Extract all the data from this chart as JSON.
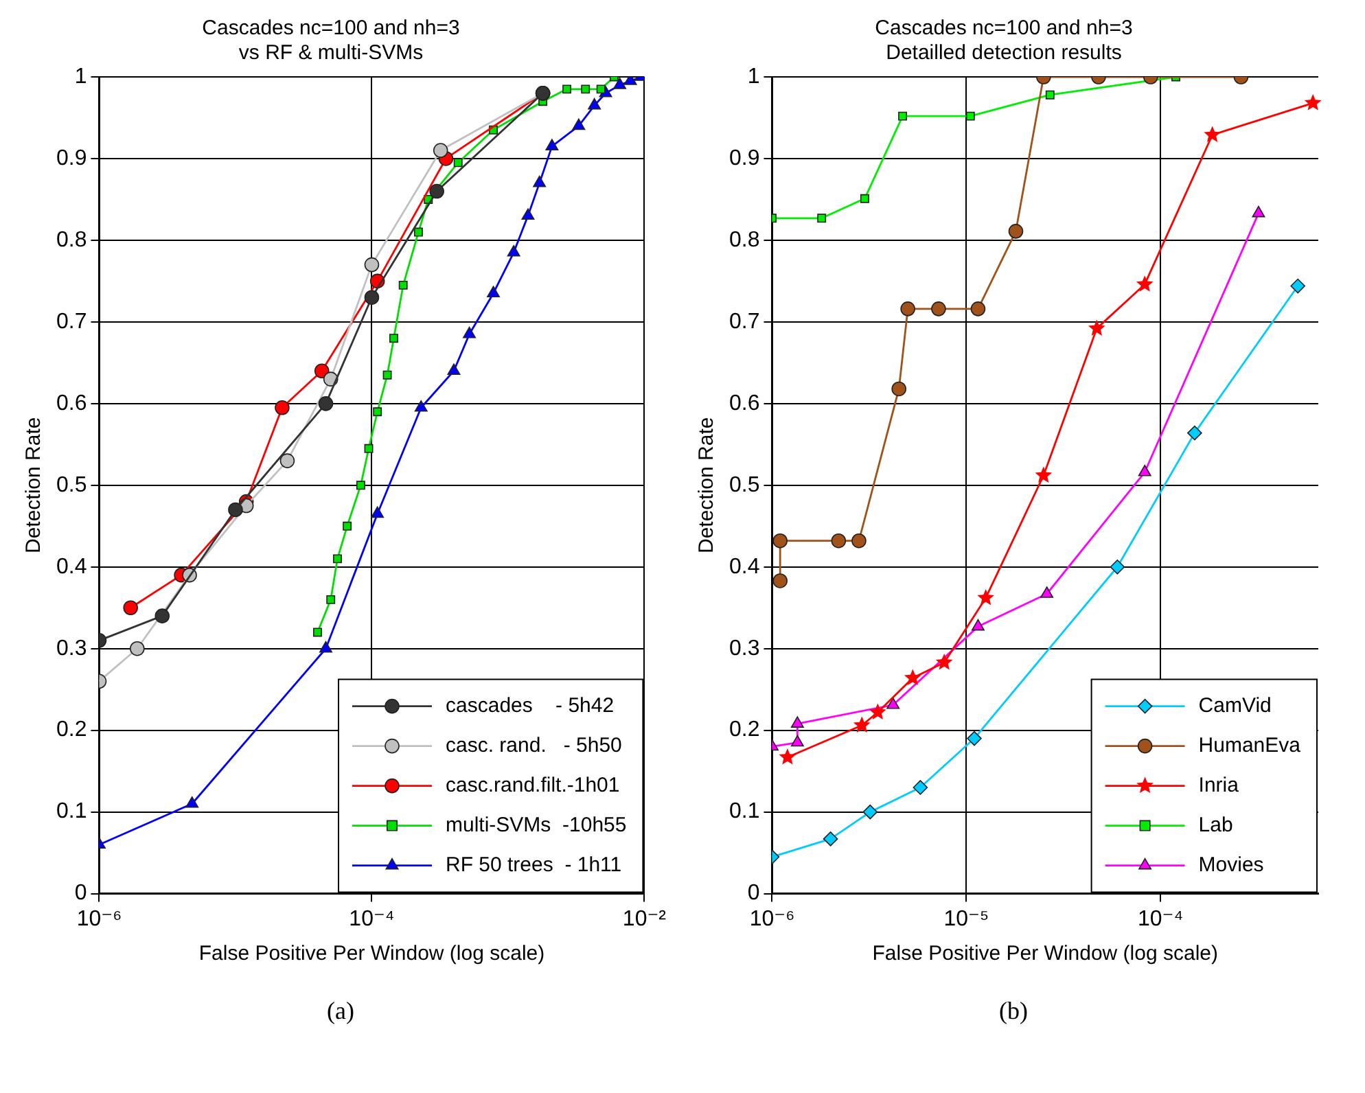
{
  "chart_data": [
    {
      "type": "line",
      "title": "Cascades nc=100 and nh=3",
      "subtitle": "vs RF & multi-SVMs",
      "xlabel": "False Positive Per Window (log scale)",
      "ylabel": "Detection Rate",
      "annotations": [
        "(a)"
      ],
      "log": "x",
      "grid": true,
      "legend": "bottom right",
      "xlim": [
        1e-06,
        0.01
      ],
      "ylim": [
        0,
        1
      ],
      "xticks": [
        {
          "value": 1e-06,
          "label": "10⁻⁶"
        },
        {
          "value": 0.0001,
          "label": "10⁻⁴"
        },
        {
          "value": 0.01,
          "label": "10⁻²"
        }
      ],
      "yticks": [
        0,
        0.1,
        0.2,
        0.3,
        0.4,
        0.5,
        0.6,
        0.7,
        0.8,
        0.9,
        1
      ],
      "series": [
        {
          "name": "cascades    - 5h42",
          "color": "#333333",
          "marker": "circle",
          "x": [
            1e-06,
            2.9e-06,
            1e-05,
            4.6e-05,
            0.0001,
            0.0003,
            0.0018
          ],
          "values": [
            0.31,
            0.34,
            0.47,
            0.6,
            0.73,
            0.86,
            0.98
          ]
        },
        {
          "name": "casc. rand.   - 5h50",
          "color": "#c0c0c0",
          "marker": "circle",
          "x": [
            1e-06,
            1.9e-06,
            4.6e-06,
            1.2e-05,
            2.4e-05,
            5e-05,
            0.0001,
            0.00032,
            0.0018
          ],
          "values": [
            0.26,
            0.3,
            0.39,
            0.475,
            0.53,
            0.63,
            0.77,
            0.91,
            0.98
          ]
        },
        {
          "name": "casc.rand.filt.-1h01",
          "color": "#ff0000",
          "marker": "circle",
          "x": [
            1.7e-06,
            4e-06,
            1.2e-05,
            2.2e-05,
            4.3e-05,
            0.00011,
            0.00035,
            0.0018
          ],
          "values": [
            0.35,
            0.39,
            0.48,
            0.595,
            0.64,
            0.75,
            0.9,
            0.98
          ]
        },
        {
          "name": "multi-SVMs  -10h55",
          "color": "#00e000",
          "marker": "square",
          "x": [
            4e-05,
            5e-05,
            5.6e-05,
            6.6e-05,
            8.3e-05,
            9.5e-05,
            0.00011,
            0.00013,
            0.000145,
            0.00017,
            0.00022,
            0.00026,
            0.00043,
            0.00078,
            0.0018,
            0.0027,
            0.0037,
            0.0048,
            0.006
          ],
          "values": [
            0.32,
            0.36,
            0.41,
            0.45,
            0.5,
            0.545,
            0.59,
            0.635,
            0.68,
            0.745,
            0.81,
            0.85,
            0.895,
            0.935,
            0.97,
            0.985,
            0.985,
            0.985,
            1.0
          ]
        },
        {
          "name": "RF 50 trees  - 1h11",
          "color": "#0000ff",
          "marker": "triangle",
          "x": [
            1e-06,
            4.8e-06,
            4.6e-05,
            0.00011,
            0.00023,
            0.0004,
            0.00052,
            0.00078,
            0.0011,
            0.0014,
            0.0017,
            0.0021,
            0.0033,
            0.0043,
            0.0052,
            0.0066,
            0.0079,
            0.0095
          ],
          "values": [
            0.06,
            0.11,
            0.3,
            0.465,
            0.595,
            0.64,
            0.685,
            0.735,
            0.785,
            0.83,
            0.87,
            0.915,
            0.94,
            0.965,
            0.98,
            0.99,
            0.995,
            1.0
          ]
        }
      ]
    },
    {
      "type": "line",
      "title": "Cascades nc=100 and nh=3",
      "subtitle": "Detailled detection results",
      "xlabel": "False Positive Per Window (log scale)",
      "ylabel": "Detection Rate",
      "annotations": [
        "(b)"
      ],
      "log": "x",
      "grid": true,
      "legend": "bottom right",
      "xlim": [
        1e-06,
        0.00065
      ],
      "ylim": [
        0,
        1
      ],
      "xticks": [
        {
          "value": 1e-06,
          "label": "10⁻⁶"
        },
        {
          "value": 1e-05,
          "label": "10⁻⁵"
        },
        {
          "value": 0.0001,
          "label": "10⁻⁴"
        }
      ],
      "yticks": [
        0,
        0.1,
        0.2,
        0.3,
        0.4,
        0.5,
        0.6,
        0.7,
        0.8,
        0.9,
        1
      ],
      "series": [
        {
          "name": "CamVid",
          "color": "#00ccff",
          "marker": "diamond",
          "x": [
            1e-06,
            2e-06,
            3.2e-06,
            5.8e-06,
            1.1e-05,
            6e-05,
            0.00015,
            0.00051
          ],
          "values": [
            0.045,
            0.067,
            0.1,
            0.13,
            0.19,
            0.4,
            0.564,
            0.744
          ]
        },
        {
          "name": "HumanEva",
          "color": "#a0521a",
          "marker": "circle",
          "x": [
            1.1e-06,
            1.1e-06,
            2.2e-06,
            2.8e-06,
            4.5e-06,
            5e-06,
            7.2e-06,
            1.15e-05,
            1.8e-05,
            2.5e-05,
            4.8e-05,
            8.9e-05,
            0.00026
          ],
          "values": [
            0.383,
            0.432,
            0.432,
            0.432,
            0.618,
            0.716,
            0.716,
            0.716,
            0.811,
            1.0,
            1.0,
            1.0,
            1.0
          ]
        },
        {
          "name": "Inria",
          "color": "#ff0000",
          "marker": "star",
          "x": [
            1.2e-06,
            2.9e-06,
            3.5e-06,
            5.3e-06,
            7.7e-06,
            1.26e-05,
            2.5e-05,
            4.7e-05,
            8.3e-05,
            0.000185,
            0.00061
          ],
          "values": [
            0.167,
            0.206,
            0.222,
            0.264,
            0.283,
            0.362,
            0.512,
            0.692,
            0.746,
            0.929,
            0.968
          ]
        },
        {
          "name": "Lab",
          "color": "#00ee00",
          "marker": "square",
          "x": [
            1e-06,
            1.8e-06,
            3e-06,
            4.7e-06,
            1.05e-05,
            2.7e-05,
            0.00012
          ],
          "values": [
            0.827,
            0.827,
            0.851,
            0.952,
            0.952,
            0.978,
            1.0
          ]
        },
        {
          "name": "Movies",
          "color": "#ff00ff",
          "marker": "triangle",
          "x": [
            1e-06,
            1.35e-06,
            1.35e-06,
            4.2e-06,
            1.15e-05,
            2.6e-05,
            8.3e-05,
            0.00032
          ],
          "values": [
            0.18,
            0.185,
            0.208,
            0.231,
            0.327,
            0.367,
            0.516,
            0.833
          ]
        }
      ]
    }
  ]
}
